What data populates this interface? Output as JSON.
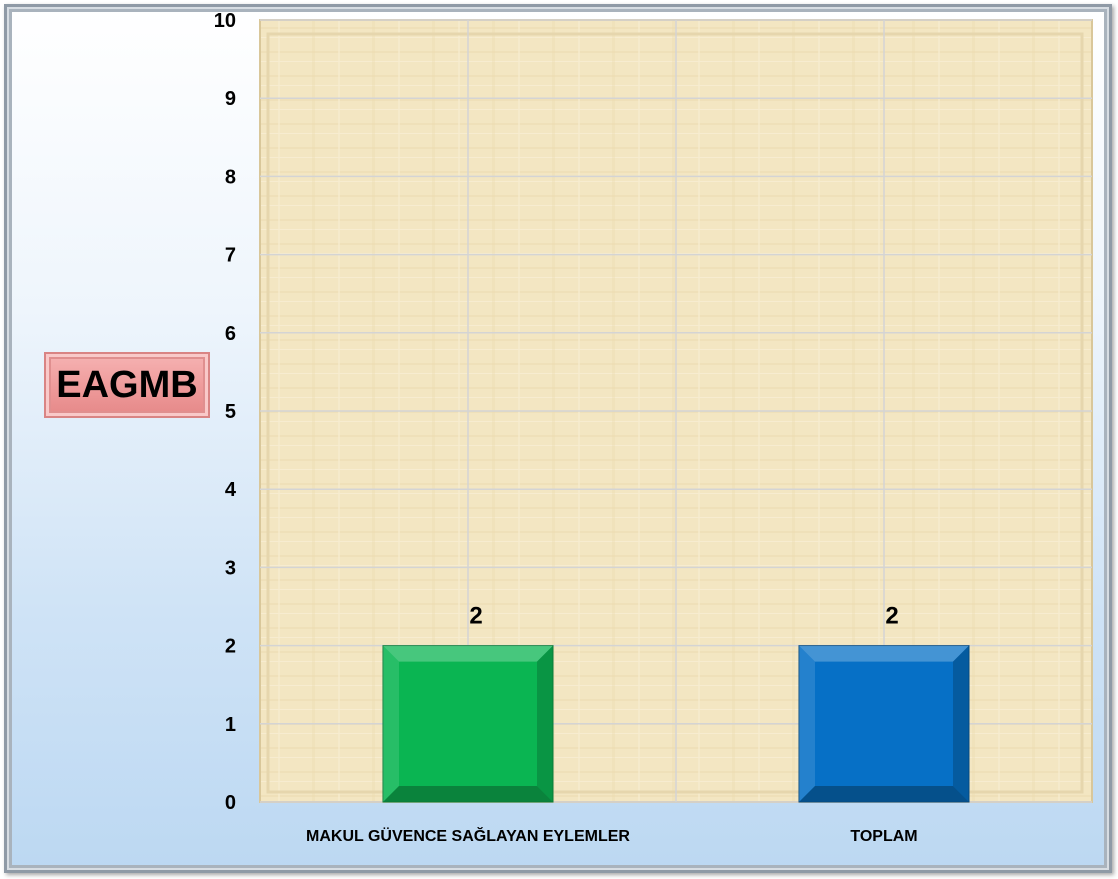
{
  "chart_data": {
    "type": "bar",
    "title": "EAGMB",
    "categories": [
      "MAKUL GÜVENCE SAĞLAYAN EYLEMLER",
      "TOPLAM"
    ],
    "values": [
      2,
      2
    ],
    "data_labels": [
      "2",
      "2"
    ],
    "bar_colors": [
      "#0ab552",
      "#0670c6"
    ],
    "bar_edge_colors": [
      "#0a7a38",
      "#064a80"
    ],
    "ylim": [
      0,
      10
    ],
    "yticks": [
      0,
      1,
      2,
      3,
      4,
      5,
      6,
      7,
      8,
      9,
      10
    ],
    "xlabel": "",
    "ylabel": "",
    "grid": true,
    "plot_background": "#f3e6c2",
    "legend": "none"
  }
}
